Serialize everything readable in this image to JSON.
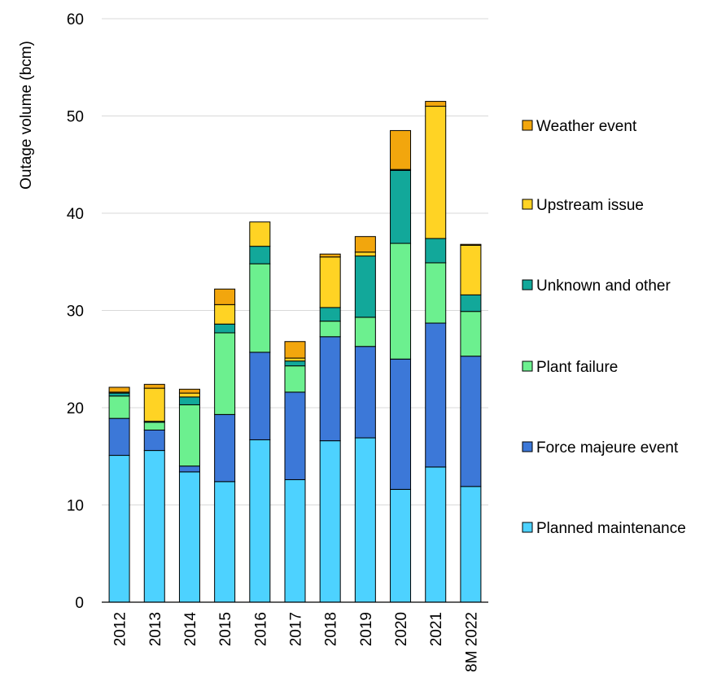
{
  "chart_data": {
    "type": "bar",
    "stacked": true,
    "title": "",
    "xlabel": "",
    "ylabel": "Outage volume (bcm)",
    "ylim": [
      0,
      60
    ],
    "yticks": [
      0,
      10,
      20,
      30,
      40,
      50,
      60
    ],
    "grid": true,
    "legend_position": "right",
    "categories": [
      "2012",
      "2013",
      "2014",
      "2015",
      "2016",
      "2017",
      "2018",
      "2019",
      "2020",
      "2021",
      "8M 2022"
    ],
    "series": [
      {
        "name": "Planned maintenance",
        "color": "#4DD2FF",
        "values": [
          15.1,
          15.6,
          13.4,
          12.4,
          16.7,
          12.6,
          16.6,
          16.9,
          11.6,
          13.9,
          11.9
        ]
      },
      {
        "name": "Force majeure event",
        "color": "#3C78D8",
        "values": [
          3.8,
          2.1,
          0.6,
          6.9,
          9.0,
          9.0,
          10.7,
          9.4,
          13.4,
          14.8,
          13.4
        ]
      },
      {
        "name": "Plant failure",
        "color": "#6CF08F",
        "values": [
          2.3,
          0.8,
          6.3,
          8.4,
          9.1,
          2.7,
          1.6,
          3.0,
          11.9,
          6.2,
          4.6
        ]
      },
      {
        "name": "Unknown and other",
        "color": "#12A89A",
        "values": [
          0.3,
          0.1,
          0.8,
          0.9,
          1.8,
          0.5,
          1.4,
          6.3,
          7.5,
          2.5,
          1.7
        ]
      },
      {
        "name": "Upstream issue",
        "color": "#FFD324",
        "values": [
          0.1,
          3.4,
          0.4,
          2.0,
          2.5,
          0.3,
          5.2,
          0.4,
          0.1,
          13.6,
          5.1
        ]
      },
      {
        "name": "Weather event",
        "color": "#F2A60D",
        "values": [
          0.5,
          0.4,
          0.4,
          1.6,
          0.0,
          1.7,
          0.3,
          1.6,
          4.0,
          0.5,
          0.1
        ]
      }
    ]
  }
}
